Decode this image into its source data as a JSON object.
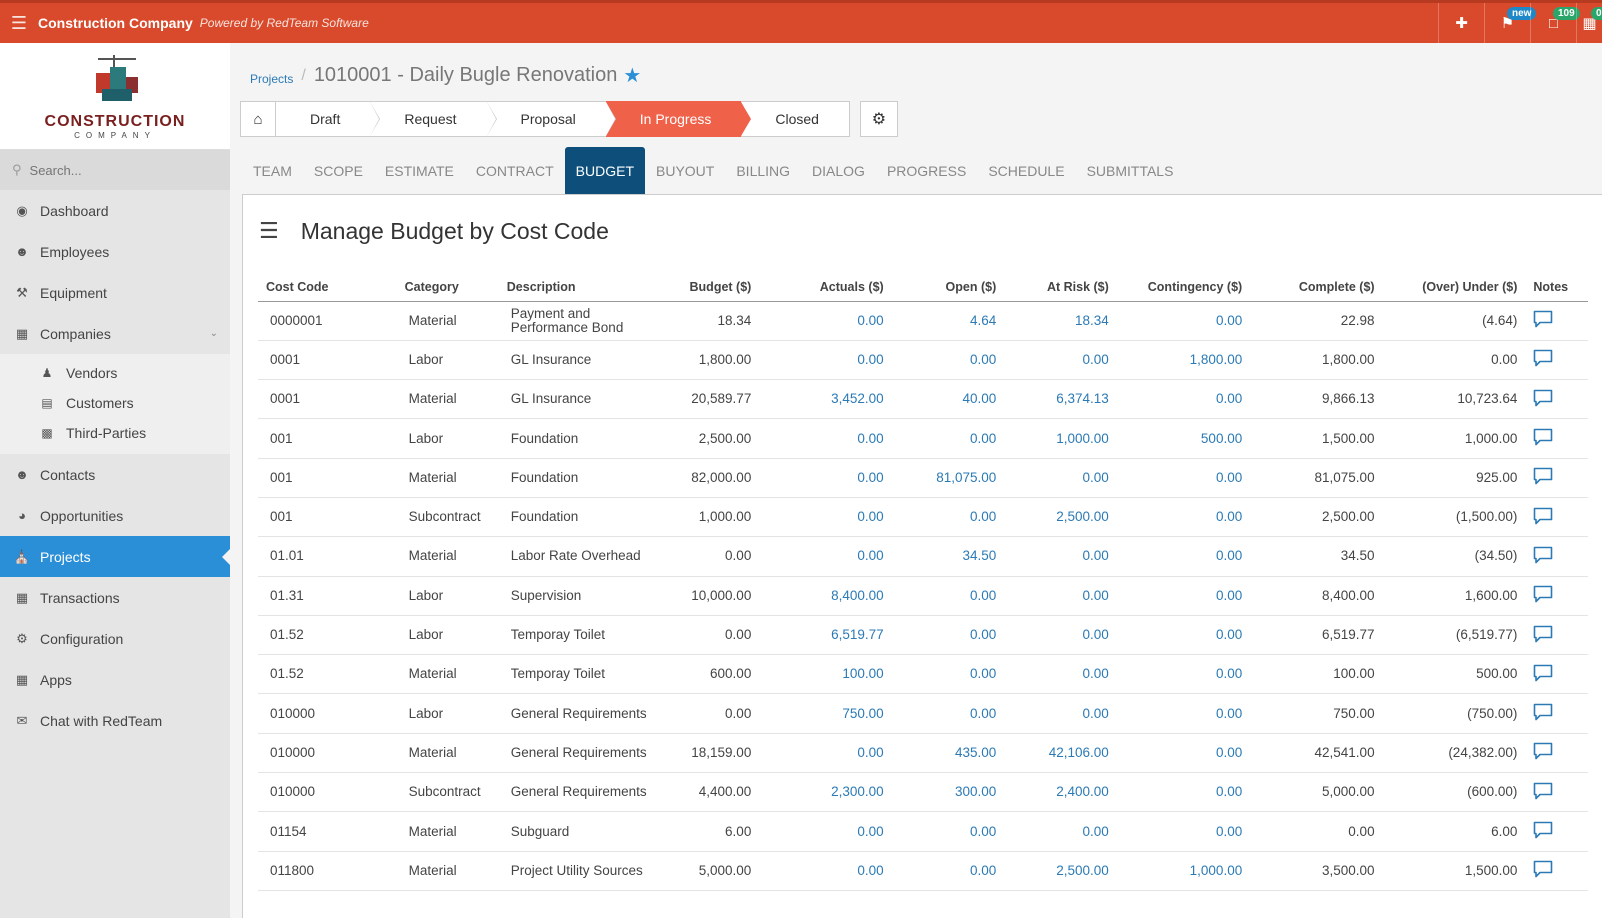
{
  "topbar": {
    "company": "Construction Company",
    "powered": "Powered by RedTeam Software",
    "badges": {
      "new": "new",
      "count": "109",
      "green": "0"
    }
  },
  "sidebar": {
    "logo": {
      "name": "CONSTRUCTION",
      "sub": "COMPANY"
    },
    "search_placeholder": "Search...",
    "items": [
      {
        "label": "Dashboard",
        "icon": "dashboard-icon"
      },
      {
        "label": "Employees",
        "icon": "users-icon"
      },
      {
        "label": "Equipment",
        "icon": "wrench-icon"
      },
      {
        "label": "Companies",
        "icon": "building-icon"
      }
    ],
    "sub_items": [
      {
        "label": "Vendors"
      },
      {
        "label": "Customers"
      },
      {
        "label": "Third-Parties"
      }
    ],
    "items2": [
      {
        "label": "Contacts"
      },
      {
        "label": "Opportunities"
      },
      {
        "label": "Projects"
      },
      {
        "label": "Transactions"
      },
      {
        "label": "Configuration"
      },
      {
        "label": "Apps"
      },
      {
        "label": "Chat with RedTeam"
      }
    ]
  },
  "breadcrumb": {
    "link": "Projects",
    "title": "1010001 - Daily Bugle Renovation"
  },
  "stages": [
    "Draft",
    "Request",
    "Proposal",
    "In Progress",
    "Closed"
  ],
  "tabs": [
    "TEAM",
    "SCOPE",
    "ESTIMATE",
    "CONTRACT",
    "BUDGET",
    "BUYOUT",
    "BILLING",
    "DIALOG",
    "PROGRESS",
    "SCHEDULE",
    "SUBMITTALS"
  ],
  "panel": {
    "title": "Manage Budget by Cost Code"
  },
  "table": {
    "headers": [
      "Cost Code",
      "Category",
      "Description",
      "Budget ($)",
      "Actuals ($)",
      "Open ($)",
      "At Risk ($)",
      "Contingency ($)",
      "Complete ($)",
      "(Over) Under ($)",
      "Notes"
    ],
    "rows": [
      [
        "0000001",
        "Material",
        "Payment and Performance Bond",
        "18.34",
        "0.00",
        "4.64",
        "18.34",
        "0.00",
        "22.98",
        "(4.64)"
      ],
      [
        "0001",
        "Labor",
        "GL Insurance",
        "1,800.00",
        "0.00",
        "0.00",
        "0.00",
        "1,800.00",
        "1,800.00",
        "0.00"
      ],
      [
        "0001",
        "Material",
        "GL Insurance",
        "20,589.77",
        "3,452.00",
        "40.00",
        "6,374.13",
        "0.00",
        "9,866.13",
        "10,723.64"
      ],
      [
        "001",
        "Labor",
        "Foundation",
        "2,500.00",
        "0.00",
        "0.00",
        "1,000.00",
        "500.00",
        "1,500.00",
        "1,000.00"
      ],
      [
        "001",
        "Material",
        "Foundation",
        "82,000.00",
        "0.00",
        "81,075.00",
        "0.00",
        "0.00",
        "81,075.00",
        "925.00"
      ],
      [
        "001",
        "Subcontract",
        "Foundation",
        "1,000.00",
        "0.00",
        "0.00",
        "2,500.00",
        "0.00",
        "2,500.00",
        "(1,500.00)"
      ],
      [
        "01.01",
        "Material",
        "Labor Rate Overhead",
        "0.00",
        "0.00",
        "34.50",
        "0.00",
        "0.00",
        "34.50",
        "(34.50)"
      ],
      [
        "01.31",
        "Labor",
        "Supervision",
        "10,000.00",
        "8,400.00",
        "0.00",
        "0.00",
        "0.00",
        "8,400.00",
        "1,600.00"
      ],
      [
        "01.52",
        "Labor",
        "Temporay Toilet",
        "0.00",
        "6,519.77",
        "0.00",
        "0.00",
        "0.00",
        "6,519.77",
        "(6,519.77)"
      ],
      [
        "01.52",
        "Material",
        "Temporay Toilet",
        "600.00",
        "100.00",
        "0.00",
        "0.00",
        "0.00",
        "100.00",
        "500.00"
      ],
      [
        "010000",
        "Labor",
        "General Requirements",
        "0.00",
        "750.00",
        "0.00",
        "0.00",
        "0.00",
        "750.00",
        "(750.00)"
      ],
      [
        "010000",
        "Material",
        "General Requirements",
        "18,159.00",
        "0.00",
        "435.00",
        "42,106.00",
        "0.00",
        "42,541.00",
        "(24,382.00)"
      ],
      [
        "010000",
        "Subcontract",
        "General Requirements",
        "4,400.00",
        "2,300.00",
        "300.00",
        "2,400.00",
        "0.00",
        "5,000.00",
        "(600.00)"
      ],
      [
        "01154",
        "Material",
        "Subguard",
        "6.00",
        "0.00",
        "0.00",
        "0.00",
        "0.00",
        "0.00",
        "6.00"
      ],
      [
        "011800",
        "Material",
        "Project Utility Sources",
        "5,000.00",
        "0.00",
        "0.00",
        "2,500.00",
        "1,000.00",
        "3,500.00",
        "1,500.00"
      ]
    ]
  }
}
